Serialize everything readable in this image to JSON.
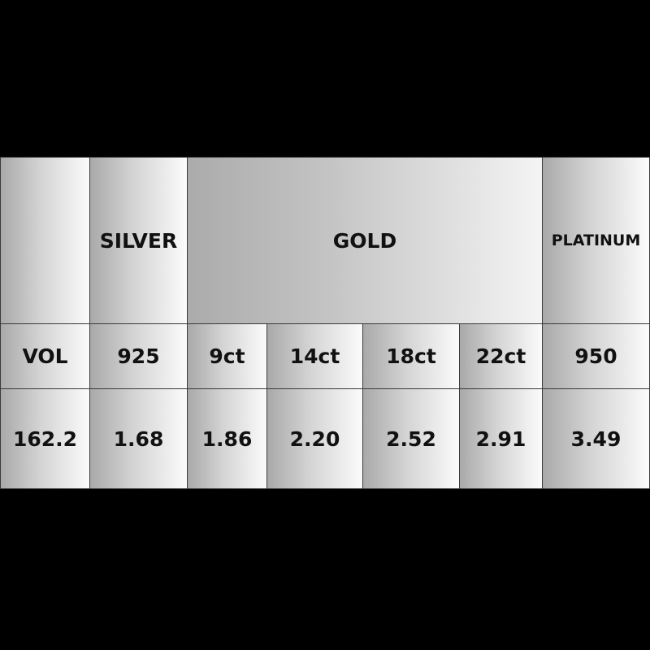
{
  "header": {
    "blank": "",
    "silver": "SILVER",
    "gold": "GOLD",
    "platinum": "PLATINUM"
  },
  "subheader": [
    "VOL",
    "925",
    "9ct",
    "14ct",
    "18ct",
    "22ct",
    "950"
  ],
  "values": [
    "162.2",
    "1.68",
    "1.86",
    "2.20",
    "2.52",
    "2.91",
    "3.49"
  ]
}
